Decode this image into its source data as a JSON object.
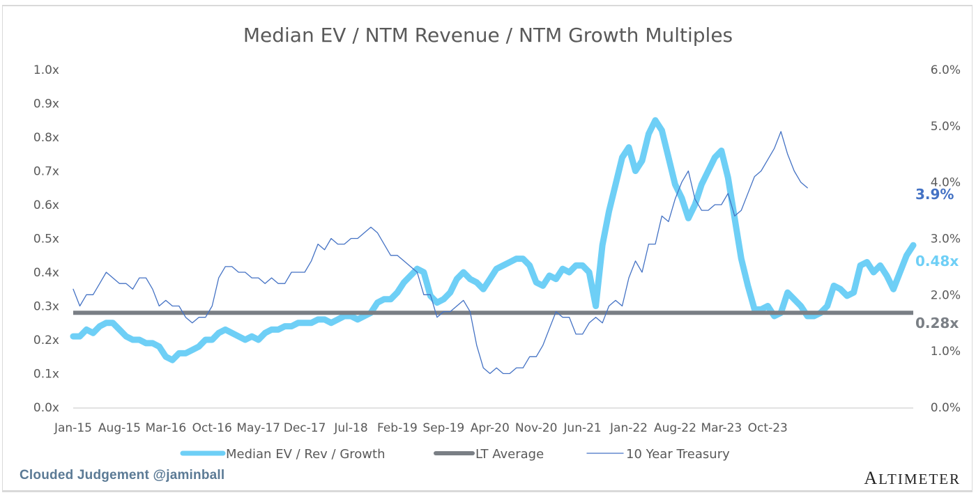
{
  "chart_data": {
    "type": "line",
    "title": "Median EV / NTM Revenue / NTM Growth Multiples",
    "xlabel": "",
    "ylabel": "",
    "y_left": {
      "ylim": [
        0,
        1.0
      ],
      "ticks": [
        "0.0x",
        "0.1x",
        "0.2x",
        "0.3x",
        "0.4x",
        "0.5x",
        "0.6x",
        "0.7x",
        "0.8x",
        "0.9x",
        "1.0x"
      ]
    },
    "y_right": {
      "ylim": [
        0,
        6.0
      ],
      "ticks": [
        "0.0%",
        "1.0%",
        "2.0%",
        "3.0%",
        "4.0%",
        "5.0%",
        "6.0%"
      ]
    },
    "x_tick_labels": [
      "Jan-15",
      "Aug-15",
      "Mar-16",
      "Oct-16",
      "May-17",
      "Dec-17",
      "Jul-18",
      "Feb-19",
      "Sep-19",
      "Apr-20",
      "Nov-20",
      "Jun-21",
      "Jan-22",
      "Aug-22",
      "Mar-23",
      "Oct-23"
    ],
    "x_start": "Jan-15",
    "x_step": "month",
    "grid": false,
    "legend_position": "bottom",
    "series": [
      {
        "name": "Median EV / Rev / Growth",
        "axis": "left",
        "color": "#6ecff6",
        "values": [
          0.21,
          0.21,
          0.23,
          0.22,
          0.24,
          0.25,
          0.25,
          0.23,
          0.21,
          0.2,
          0.2,
          0.19,
          0.19,
          0.18,
          0.15,
          0.14,
          0.16,
          0.16,
          0.17,
          0.18,
          0.2,
          0.2,
          0.22,
          0.23,
          0.22,
          0.21,
          0.2,
          0.21,
          0.2,
          0.22,
          0.23,
          0.23,
          0.24,
          0.24,
          0.25,
          0.25,
          0.25,
          0.26,
          0.26,
          0.25,
          0.26,
          0.27,
          0.27,
          0.26,
          0.27,
          0.28,
          0.31,
          0.32,
          0.32,
          0.34,
          0.37,
          0.39,
          0.41,
          0.4,
          0.33,
          0.31,
          0.32,
          0.34,
          0.38,
          0.4,
          0.38,
          0.37,
          0.35,
          0.38,
          0.41,
          0.42,
          0.43,
          0.44,
          0.44,
          0.42,
          0.37,
          0.36,
          0.39,
          0.38,
          0.41,
          0.4,
          0.42,
          0.42,
          0.4,
          0.3,
          0.48,
          0.58,
          0.66,
          0.74,
          0.77,
          0.7,
          0.73,
          0.81,
          0.85,
          0.82,
          0.74,
          0.66,
          0.62,
          0.56,
          0.6,
          0.66,
          0.7,
          0.74,
          0.76,
          0.68,
          0.56,
          0.44,
          0.36,
          0.29,
          0.29,
          0.3,
          0.27,
          0.28,
          0.34,
          0.32,
          0.3,
          0.27,
          0.27,
          0.28,
          0.3,
          0.36,
          0.35,
          0.33,
          0.34,
          0.42,
          0.43,
          0.4,
          0.42,
          0.39,
          0.35,
          0.4,
          0.45,
          0.48
        ]
      },
      {
        "name": "LT Average",
        "axis": "left",
        "color": "#7a7f85",
        "values": [
          0.28
        ]
      },
      {
        "name": "10 Year Treasury",
        "axis": "right",
        "color": "#4472c4",
        "values": [
          2.1,
          1.8,
          2.0,
          2.0,
          2.2,
          2.4,
          2.3,
          2.2,
          2.2,
          2.1,
          2.3,
          2.3,
          2.1,
          1.8,
          1.9,
          1.8,
          1.8,
          1.6,
          1.5,
          1.6,
          1.6,
          1.8,
          2.3,
          2.5,
          2.5,
          2.4,
          2.4,
          2.3,
          2.3,
          2.2,
          2.3,
          2.2,
          2.2,
          2.4,
          2.4,
          2.4,
          2.6,
          2.9,
          2.8,
          3.0,
          2.9,
          2.9,
          3.0,
          3.0,
          3.1,
          3.2,
          3.1,
          2.9,
          2.7,
          2.7,
          2.6,
          2.5,
          2.4,
          2.0,
          2.0,
          1.6,
          1.7,
          1.7,
          1.8,
          1.9,
          1.7,
          1.1,
          0.7,
          0.6,
          0.7,
          0.6,
          0.6,
          0.7,
          0.7,
          0.9,
          0.9,
          1.1,
          1.4,
          1.7,
          1.6,
          1.6,
          1.3,
          1.3,
          1.5,
          1.6,
          1.5,
          1.8,
          1.9,
          1.8,
          2.3,
          2.6,
          2.4,
          2.9,
          2.9,
          3.4,
          3.3,
          3.7,
          4.0,
          4.2,
          3.7,
          3.5,
          3.5,
          3.6,
          3.6,
          3.8,
          3.4,
          3.5,
          3.8,
          4.1,
          4.2,
          4.4,
          4.6,
          4.9,
          4.5,
          4.2,
          4.0,
          3.9
        ],
        "note": "values approximate monthly levels in percent"
      }
    ],
    "end_labels": [
      {
        "series": "10 Year Treasury",
        "text": "3.9%",
        "color": "#4472c4"
      },
      {
        "series": "Median EV / Rev / Growth",
        "text": "0.48x",
        "color": "#6ecff6"
      },
      {
        "series": "LT Average",
        "text": "0.28x",
        "color": "#7a7f85"
      }
    ]
  },
  "footer": {
    "credit": "Clouded Judgement @jaminball",
    "brand_first": "A",
    "brand_rest": "LTIMETER"
  }
}
